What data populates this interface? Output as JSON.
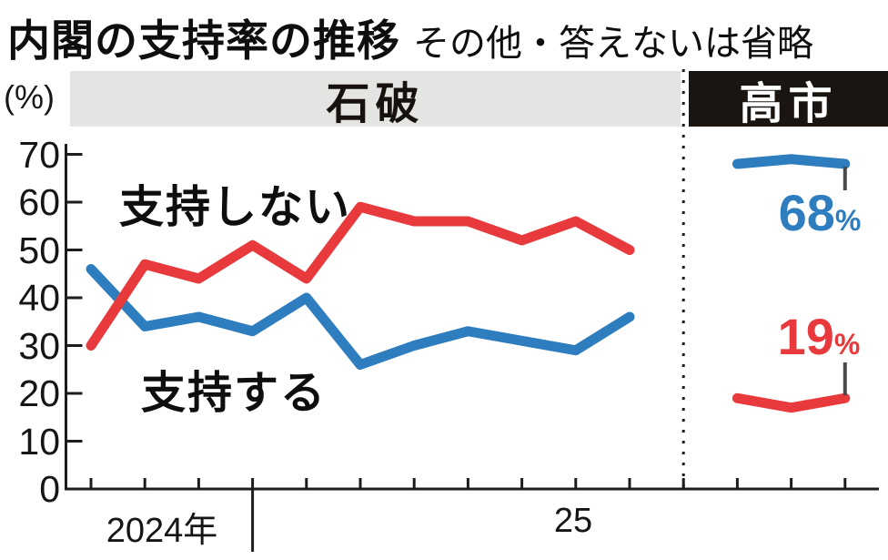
{
  "header": {
    "title": "内閣の支持率の推移",
    "subtitle": "その他・答えないは省略"
  },
  "sections": {
    "ishiba_label": "石破",
    "takaichi_label": "高市"
  },
  "axis": {
    "unit_label": "(%)",
    "y_ticks": [
      0,
      10,
      20,
      30,
      40,
      50,
      60,
      70
    ],
    "x_year_labels": [
      "2024年",
      "25"
    ]
  },
  "series_labels": {
    "disapprove": "支持しない",
    "approve": "支持する"
  },
  "callouts": {
    "approve_value": "68",
    "disapprove_value": "19",
    "percent_sign": "%"
  },
  "colors": {
    "approve_blue": "#2e7dbe",
    "disapprove_red": "#e8393c",
    "band_gray": "#e4e4e3",
    "band_black": "#1a1510",
    "axis_black": "#1d1d1d",
    "leader_gray": "#4a4a4a"
  },
  "chart_data": {
    "type": "line",
    "title": "内閣の支持率の推移",
    "note": "その他・答えないは省略",
    "ylabel": "(%)",
    "ylim": [
      0,
      70
    ],
    "y_ticks": [
      0,
      10,
      20,
      30,
      40,
      50,
      60,
      70
    ],
    "x_axis_note": "monthly surveys; year labels shown: 2024年 then 25; dotted line marks change of cabinet",
    "sections": [
      {
        "name": "石破",
        "x_tick_indices": [
          0,
          1,
          2,
          3,
          4,
          5,
          6,
          7,
          8,
          9,
          10
        ],
        "series": [
          {
            "name": "支持する",
            "color": "#2e7dbe",
            "values": [
              46,
              34,
              36,
              33,
              40,
              26,
              30,
              33,
              31,
              29,
              36
            ]
          },
          {
            "name": "支持しない",
            "color": "#e8393c",
            "values": [
              30,
              47,
              44,
              51,
              44,
              59,
              56,
              56,
              52,
              56,
              50
            ]
          }
        ]
      },
      {
        "name": "高市",
        "x_tick_indices": [
          12,
          13,
          14
        ],
        "series": [
          {
            "name": "支持する",
            "color": "#2e7dbe",
            "values": [
              68,
              69,
              68
            ],
            "last_point_label": "68%"
          },
          {
            "name": "支持しない",
            "color": "#e8393c",
            "values": [
              19,
              17,
              19
            ],
            "last_point_label": "19%"
          }
        ]
      }
    ],
    "year_divider_after_tick_index": 3,
    "cabinet_divider_tick_index": 11
  }
}
